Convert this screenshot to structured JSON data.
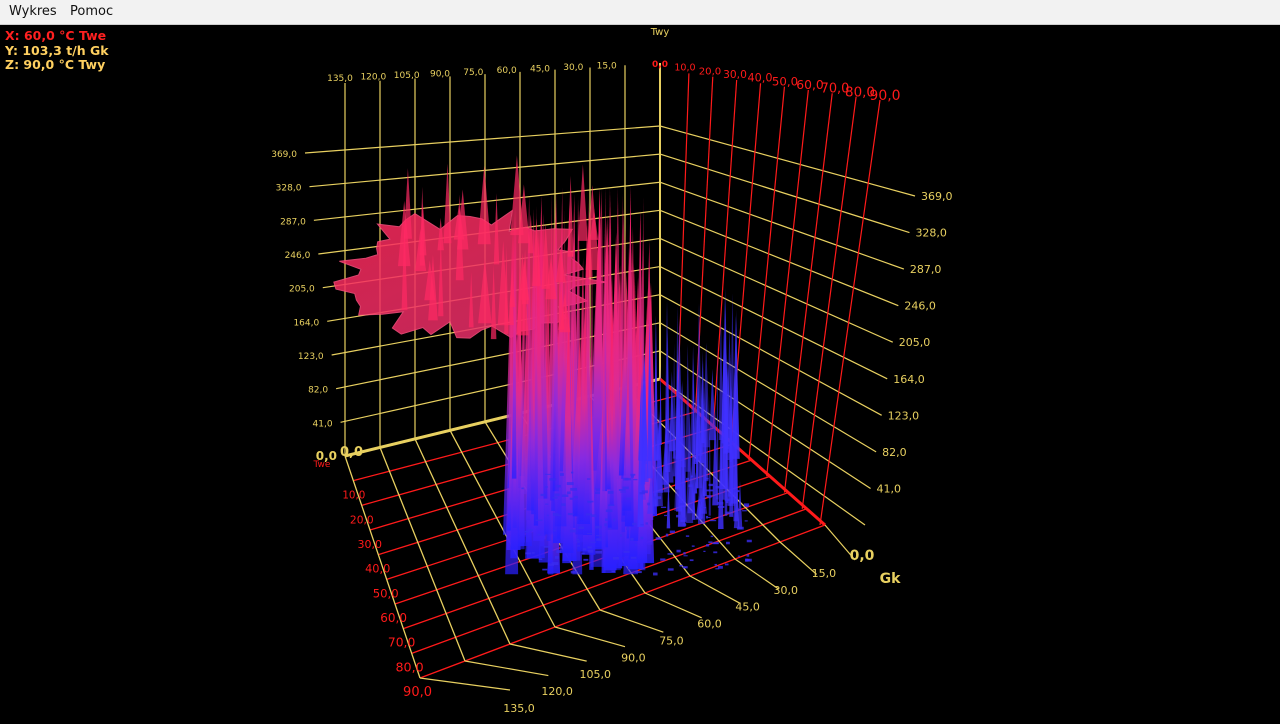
{
  "menu": {
    "items": [
      "Wykres",
      "Pomoc"
    ]
  },
  "readout": {
    "x": "X: 60,0 °C Twe",
    "y": "Y: 103,3 t/h Gk",
    "z": "Z: 90,0 °C Twy"
  },
  "colors": {
    "x_readout": "#ff2020",
    "y_readout": "#ffd060",
    "z_readout": "#ffd060",
    "red_axis": "#ff1a1a",
    "yellow_axis": "#e8d060",
    "surface_high": "#ff2060",
    "surface_low": "#3020ff"
  },
  "chart_data": {
    "type": "surface3d",
    "axes": {
      "x": {
        "name": "Twe",
        "unit": "°C",
        "range": [
          0,
          90
        ],
        "ticks": [
          "0,0",
          "10,0",
          "20,0",
          "30,0",
          "40,0",
          "50,0",
          "60,0",
          "70,0",
          "80,0",
          "90,0"
        ]
      },
      "y": {
        "name": "Gk",
        "unit": "t/h",
        "range": [
          0,
          135
        ],
        "ticks": [
          "0,0",
          "15,0",
          "30,0",
          "45,0",
          "60,0",
          "75,0",
          "90,0",
          "105,0",
          "120,0",
          "135,0"
        ]
      },
      "z": {
        "name": "Twy",
        "unit": "°C",
        "range": [
          0,
          369
        ],
        "ticks": [
          "0,0",
          "41,0",
          "82,0",
          "123,0",
          "164,0",
          "205,0",
          "246,0",
          "287,0",
          "328,0",
          "369,0"
        ]
      }
    },
    "back_wall": {
      "y_ticks": [
        "135,0",
        "120,0",
        "105,0",
        "90,0",
        "75,0",
        "60,0",
        "45,0",
        "30,0",
        "15,0"
      ],
      "x_ticks": [
        "0,0",
        "10,0",
        "20,0",
        "30,0",
        "40,0",
        "50,0",
        "60,0",
        "70,0",
        "80,0",
        "90,0"
      ]
    },
    "grid": true,
    "color_scale": "z: blue (low) to red (high)"
  }
}
